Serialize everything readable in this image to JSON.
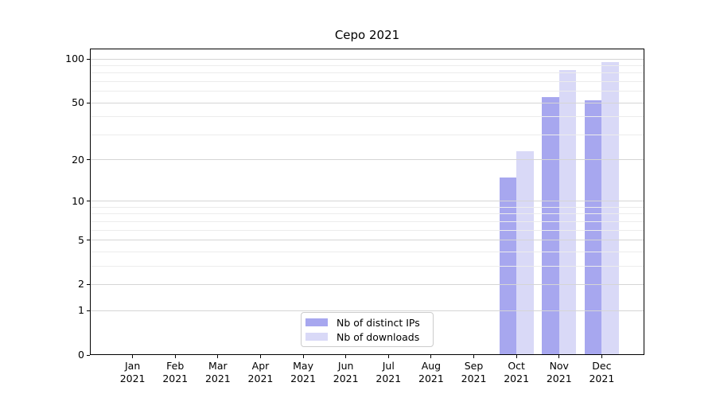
{
  "figure": {
    "title": "Cepo 2021"
  },
  "chart_data": {
    "type": "bar",
    "title": "Cepo 2021",
    "categories": [
      "Jan",
      "Feb",
      "Mar",
      "Apr",
      "May",
      "Jun",
      "Jul",
      "Aug",
      "Sep",
      "Oct",
      "Nov",
      "Dec"
    ],
    "x_year": "2021",
    "series": [
      {
        "name": "Nb of distinct IPs",
        "color": "#a7a7ef",
        "values": [
          0,
          0,
          0,
          0,
          0,
          0,
          0,
          0,
          0,
          15,
          55,
          52
        ]
      },
      {
        "name": "Nb of downloads",
        "color": "#d9d9f7",
        "values": [
          0,
          0,
          0,
          0,
          0,
          0,
          0,
          0,
          0,
          23,
          84,
          95
        ]
      }
    ],
    "y_axis": {
      "scale": "log1p",
      "ticks": [
        0,
        1,
        2,
        5,
        10,
        20,
        50,
        100
      ],
      "minor_ticks": [
        3,
        4,
        6,
        7,
        8,
        9,
        30,
        40,
        60,
        70,
        80,
        90
      ],
      "max": 117.7
    },
    "grid": "horizontal major+minor",
    "legend_position": "lower center"
  },
  "colors": {
    "bar_dark": "#a7a7ef",
    "bar_light": "#d9d9f7",
    "major_grid": "#d5d5d5",
    "minor_grid": "#ececec",
    "axis": "#000000",
    "legend_border": "#cccccc"
  }
}
